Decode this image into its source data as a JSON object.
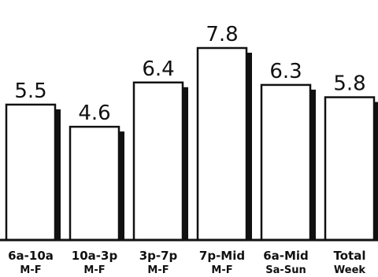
{
  "chart_data": {
    "type": "bar",
    "categories": [
      [
        "6a-10a",
        "M-F"
      ],
      [
        "10a-3p",
        "M-F"
      ],
      [
        "3p-7p",
        "M-F"
      ],
      [
        "7p-Mid",
        "M-F"
      ],
      [
        "6a-Mid",
        "Sa-Sun"
      ],
      [
        "Total",
        "Week"
      ]
    ],
    "values": [
      5.5,
      4.6,
      6.4,
      7.8,
      6.3,
      5.8
    ],
    "value_labels": [
      "5.5",
      "4.6",
      "6.4",
      "7.8",
      "6.3",
      "5.8"
    ],
    "title": "",
    "xlabel": "",
    "ylabel": "",
    "ylim": [
      0,
      7.8
    ],
    "grid": false,
    "bar_fill": "#ffffff",
    "bar_stroke": "#111111",
    "shadow_color": "#111111"
  }
}
